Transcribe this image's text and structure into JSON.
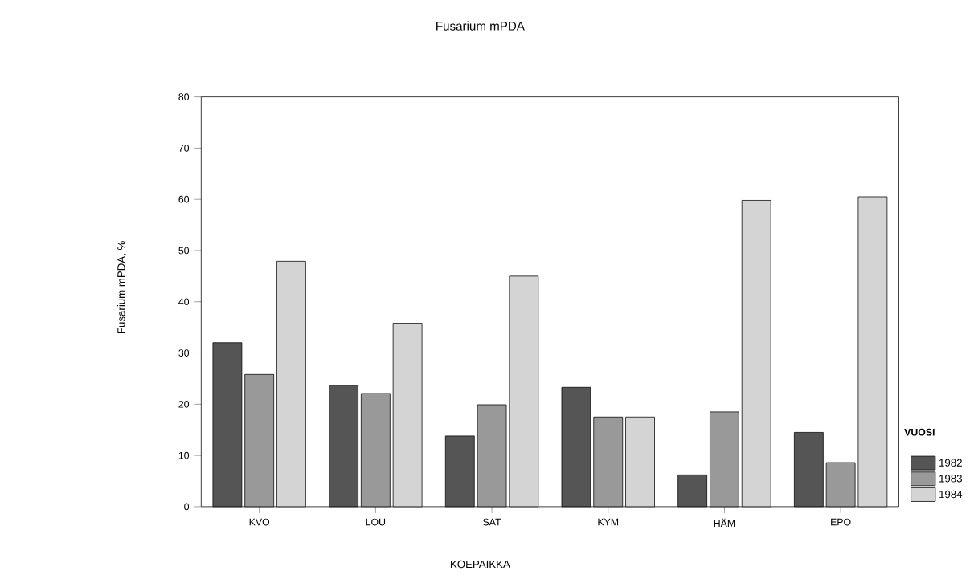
{
  "chart_data": {
    "type": "bar",
    "title": "Fusarium mPDA",
    "xlabel": "KOEPAIKKA",
    "ylabel": "Fusarium mPDA, %",
    "legend_title": "VUOSI",
    "categories": [
      "KVO",
      "LOU",
      "SAT",
      "KYM",
      "HÄM",
      "EPO"
    ],
    "series": [
      {
        "name": "1982",
        "color": "#555555",
        "values": [
          32.0,
          23.7,
          13.8,
          23.3,
          6.2,
          14.5
        ]
      },
      {
        "name": "1983",
        "color": "#999999",
        "values": [
          25.8,
          22.1,
          19.9,
          17.5,
          18.5,
          8.6
        ]
      },
      {
        "name": "1984",
        "color": "#d4d4d4",
        "values": [
          47.9,
          35.8,
          45.0,
          17.5,
          59.8,
          60.5
        ]
      }
    ],
    "ylim": [
      0,
      80
    ],
    "yticks": [
      0,
      10,
      20,
      30,
      40,
      50,
      60,
      70,
      80
    ],
    "grid": false,
    "legend": "bottom right"
  }
}
